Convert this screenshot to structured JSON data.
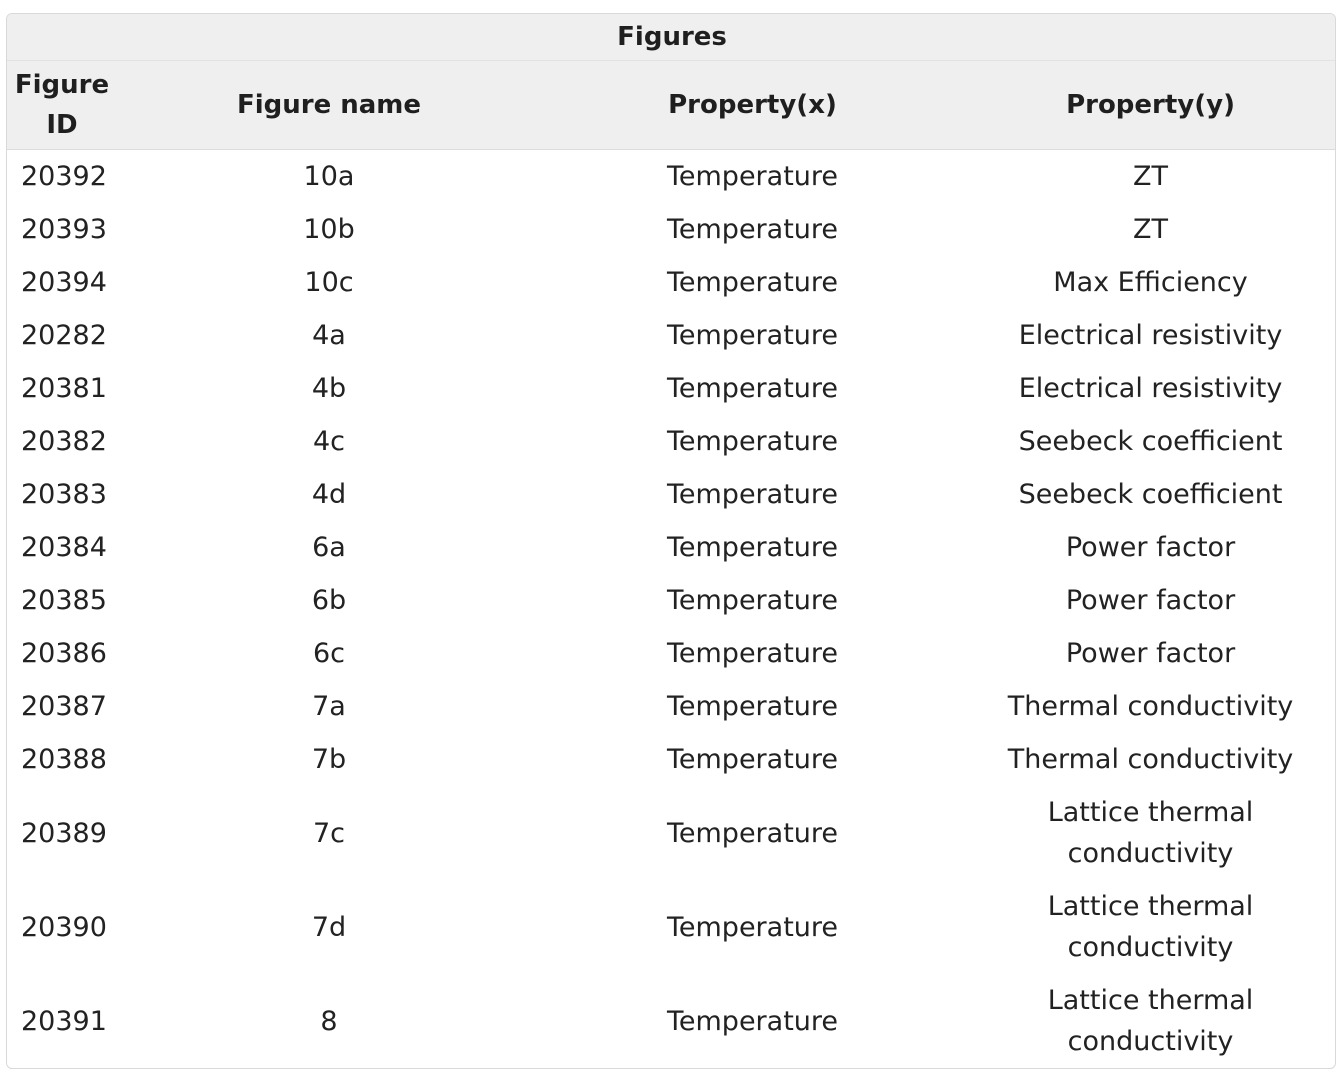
{
  "table": {
    "title": "Figures",
    "columns": [
      "Figure ID",
      "Figure name",
      "Property(x)",
      "Property(y)"
    ],
    "rows": [
      {
        "id": "20392",
        "name": "10a",
        "x": "Temperature",
        "y": "ZT"
      },
      {
        "id": "20393",
        "name": "10b",
        "x": "Temperature",
        "y": "ZT"
      },
      {
        "id": "20394",
        "name": "10c",
        "x": "Temperature",
        "y": "Max Efficiency"
      },
      {
        "id": "20282",
        "name": "4a",
        "x": "Temperature",
        "y": "Electrical resistivity"
      },
      {
        "id": "20381",
        "name": "4b",
        "x": "Temperature",
        "y": "Electrical resistivity"
      },
      {
        "id": "20382",
        "name": "4c",
        "x": "Temperature",
        "y": "Seebeck coefficient"
      },
      {
        "id": "20383",
        "name": "4d",
        "x": "Temperature",
        "y": "Seebeck coefficient"
      },
      {
        "id": "20384",
        "name": "6a",
        "x": "Temperature",
        "y": "Power factor"
      },
      {
        "id": "20385",
        "name": "6b",
        "x": "Temperature",
        "y": "Power factor"
      },
      {
        "id": "20386",
        "name": "6c",
        "x": "Temperature",
        "y": "Power factor"
      },
      {
        "id": "20387",
        "name": "7a",
        "x": "Temperature",
        "y": "Thermal conductivity"
      },
      {
        "id": "20388",
        "name": "7b",
        "x": "Temperature",
        "y": "Thermal conductivity"
      },
      {
        "id": "20389",
        "name": "7c",
        "x": "Temperature",
        "y": "Lattice thermal conductivity"
      },
      {
        "id": "20390",
        "name": "7d",
        "x": "Temperature",
        "y": "Lattice thermal conductivity"
      },
      {
        "id": "20391",
        "name": "8",
        "x": "Temperature",
        "y": "Lattice thermal conductivity"
      }
    ]
  }
}
